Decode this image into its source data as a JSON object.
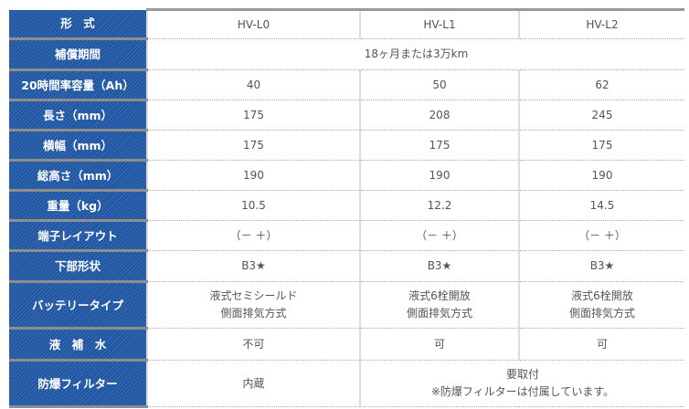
{
  "columns": [
    "HV-L0",
    "HV-L1",
    "HV-L2"
  ],
  "header_label": "形　式",
  "rows": [
    {
      "label": "補償期間",
      "span": "18ヶ月または3万km"
    },
    {
      "label": "20時間率容量（Ah）",
      "values": [
        "40",
        "50",
        "62"
      ]
    },
    {
      "label": "長さ（mm）",
      "values": [
        "175",
        "208",
        "245"
      ]
    },
    {
      "label": "横幅（mm）",
      "values": [
        "175",
        "175",
        "175"
      ]
    },
    {
      "label": "総高さ（mm）",
      "values": [
        "190",
        "190",
        "190"
      ]
    },
    {
      "label": "重量（kg）",
      "values": [
        "10.5",
        "12.2",
        "14.5"
      ]
    },
    {
      "label": "端子レイアウト",
      "values": [
        "（－ ＋）",
        "（－ ＋）",
        "（－ ＋）"
      ]
    },
    {
      "label": "下部形状",
      "values": [
        "B3★",
        "B3★",
        "B3★"
      ]
    },
    {
      "label": "バッテリータイプ",
      "values": [
        [
          "液式セミシールド",
          "側面排気方式"
        ],
        [
          "液式6栓開放",
          "側面排気方式"
        ],
        [
          "液式6栓開放",
          "側面排気方式"
        ]
      ]
    },
    {
      "label": "液　補　水",
      "values": [
        "不可",
        "可",
        "可"
      ]
    },
    {
      "label": "防爆フィルター",
      "values": [
        "内蔵"
      ],
      "span2": [
        "要取付",
        "※防爆フィルターは付属しています。"
      ]
    }
  ],
  "colors": {
    "header_bg": "#1f56a3"
  }
}
